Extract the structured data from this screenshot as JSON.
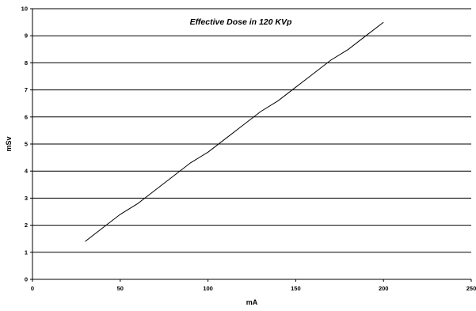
{
  "chart_data": {
    "type": "line",
    "title": "Effective Dose in 120 KVp",
    "xlabel": "mA",
    "ylabel": "mSv",
    "xlim": [
      0,
      250
    ],
    "ylim": [
      0,
      10
    ],
    "x_ticks": [
      0,
      50,
      100,
      150,
      200,
      250
    ],
    "y_ticks": [
      0,
      1,
      2,
      3,
      4,
      5,
      6,
      7,
      8,
      9,
      10
    ],
    "grid": "horizontal",
    "legend": "none",
    "line_color": "#000000",
    "series": [
      {
        "x": [
          30,
          40,
          50,
          60,
          70,
          80,
          90,
          100,
          110,
          120,
          130,
          140,
          150,
          160,
          170,
          180,
          190,
          200
        ],
        "y": [
          1.4,
          1.9,
          2.4,
          2.8,
          3.3,
          3.8,
          4.3,
          4.7,
          5.2,
          5.7,
          6.2,
          6.6,
          7.1,
          7.6,
          8.1,
          8.5,
          9.0,
          9.5
        ]
      }
    ]
  }
}
